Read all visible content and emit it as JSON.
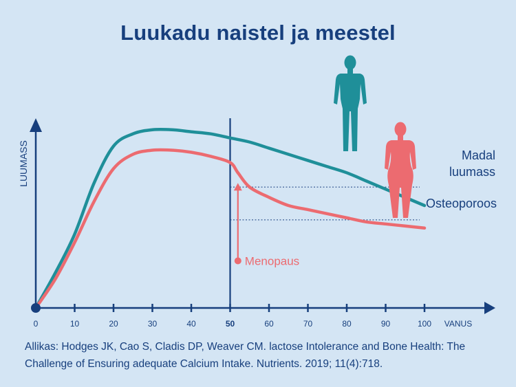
{
  "chart_data": {
    "type": "line",
    "title": "Luukadu naistel ja meestel",
    "ylabel": "LUUMASS",
    "xlabel": "VANUS",
    "xlim": [
      0,
      115
    ],
    "ylim": [
      0,
      100
    ],
    "x_ticks": [
      "0",
      "10",
      "20",
      "30",
      "40",
      "50",
      "60",
      "70",
      "80",
      "90",
      "100"
    ],
    "y_ticks": [],
    "grid": false,
    "series": [
      {
        "name": "",
        "color": "#1f8f99",
        "x": [
          0,
          5,
          10,
          15,
          20,
          25,
          30,
          35,
          40,
          45,
          50,
          55,
          60,
          65,
          70,
          75,
          80,
          85,
          90,
          95,
          100
        ],
        "y": [
          0,
          17,
          36,
          61,
          79,
          85,
          87,
          87,
          86,
          85,
          83,
          81,
          78,
          75,
          72,
          69,
          66,
          62,
          58,
          54,
          50
        ]
      },
      {
        "name": "",
        "color": "#ec6b70",
        "x": [
          0,
          5,
          10,
          15,
          20,
          25,
          30,
          35,
          40,
          45,
          50,
          52,
          55,
          60,
          65,
          70,
          75,
          80,
          85,
          90,
          95,
          100
        ],
        "y": [
          0,
          14,
          32,
          52,
          68,
          75,
          77,
          77,
          76,
          74,
          71,
          66,
          59,
          54,
          50,
          48,
          46,
          44,
          42,
          41,
          40,
          39
        ]
      }
    ],
    "reference_lines": [
      {
        "label": "Madal\nluumass",
        "y": 59,
        "color": "#173f7d"
      },
      {
        "label": "Osteoporoos",
        "y": 43,
        "color": "#173f7d"
      }
    ],
    "vertical_marker": {
      "x": 50,
      "highlight_tick": "50"
    },
    "annotations": [
      {
        "text": "Menopaus",
        "x": 52,
        "y_from": 23,
        "y_to": 61,
        "color": "#ec6b70"
      }
    ],
    "figures": [
      {
        "name": "male-figure-icon",
        "color": "#1f8f99"
      },
      {
        "name": "female-figure-icon",
        "color": "#ec6b70"
      }
    ],
    "colors": {
      "background": "#d4e5f4",
      "axis": "#173f7d"
    }
  },
  "source": "Allikas: Hodges JK, Cao S, Cladis DP, Weaver CM. lactose Intolerance and Bone Health: The Challenge of Ensuring adequate Calcium Intake. Nutrients. 2019; 11(4):718."
}
